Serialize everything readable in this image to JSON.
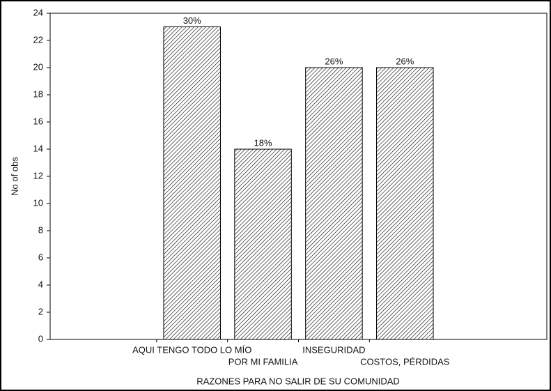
{
  "chart_data": {
    "type": "bar",
    "x_label": "RAZONES PARA NO SALIR DE SU COMUNIDAD",
    "y_label": "No of obs",
    "categories": [
      "AQUI TENGO TODO LO MÍO",
      "POR MI FAMILIA",
      "INSEGURIDAD",
      "COSTOS, PÉRDIDAS"
    ],
    "values": [
      23,
      14,
      20,
      20
    ],
    "value_labels": [
      "30%",
      "18%",
      "26%",
      "26%"
    ],
    "color": "#000000",
    "ylim": [
      0,
      24
    ],
    "yticks": [
      0,
      2,
      4,
      6,
      8,
      10,
      12,
      14,
      16,
      18,
      20,
      22,
      24
    ]
  }
}
